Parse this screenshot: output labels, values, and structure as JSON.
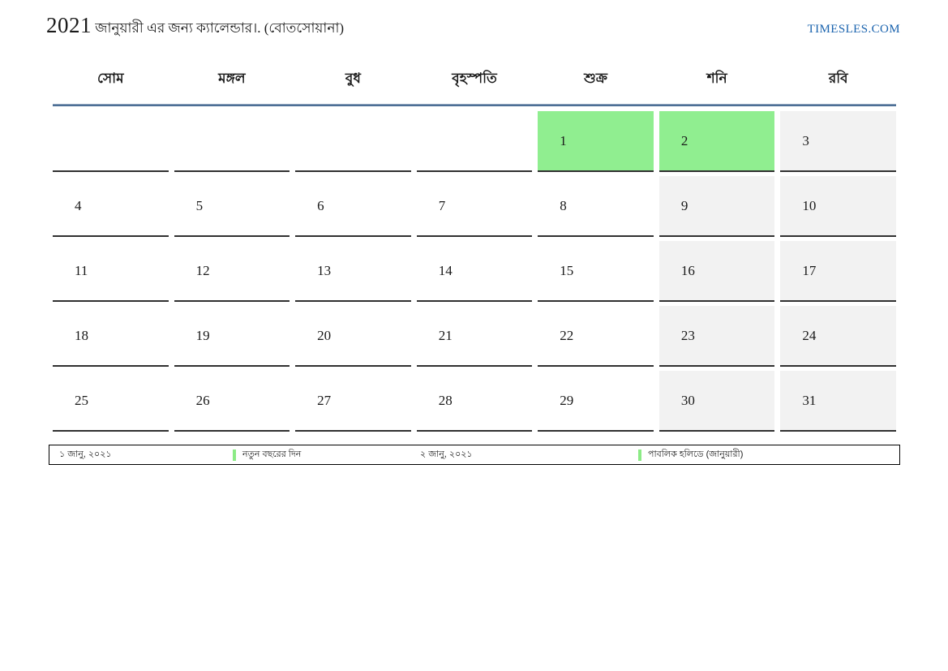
{
  "header": {
    "title_year": "2021",
    "title_text": "জানুয়ারী এর জন্য ক্যালেন্ডার।. (বোতসোয়ানা)",
    "site_link": "TIMESLES.COM"
  },
  "calendar": {
    "day_headers": [
      "সোম",
      "মঙ্গল",
      "বুধ",
      "বৃহস্পতি",
      "শুক্র",
      "শনি",
      "রবি"
    ],
    "weeks": [
      {
        "cells": [
          {
            "day": "",
            "type": "empty"
          },
          {
            "day": "",
            "type": "empty"
          },
          {
            "day": "",
            "type": "empty"
          },
          {
            "day": "",
            "type": "empty"
          },
          {
            "day": "1",
            "type": "holiday"
          },
          {
            "day": "2",
            "type": "holiday"
          },
          {
            "day": "3",
            "type": "weekend"
          }
        ]
      },
      {
        "cells": [
          {
            "day": "4",
            "type": "weekday"
          },
          {
            "day": "5",
            "type": "weekday"
          },
          {
            "day": "6",
            "type": "weekday"
          },
          {
            "day": "7",
            "type": "weekday"
          },
          {
            "day": "8",
            "type": "weekday"
          },
          {
            "day": "9",
            "type": "weekend"
          },
          {
            "day": "10",
            "type": "weekend"
          }
        ]
      },
      {
        "cells": [
          {
            "day": "11",
            "type": "weekday"
          },
          {
            "day": "12",
            "type": "weekday"
          },
          {
            "day": "13",
            "type": "weekday"
          },
          {
            "day": "14",
            "type": "weekday"
          },
          {
            "day": "15",
            "type": "weekday"
          },
          {
            "day": "16",
            "type": "weekend"
          },
          {
            "day": "17",
            "type": "weekend"
          }
        ]
      },
      {
        "cells": [
          {
            "day": "18",
            "type": "weekday"
          },
          {
            "day": "19",
            "type": "weekday"
          },
          {
            "day": "20",
            "type": "weekday"
          },
          {
            "day": "21",
            "type": "weekday"
          },
          {
            "day": "22",
            "type": "weekday"
          },
          {
            "day": "23",
            "type": "weekend"
          },
          {
            "day": "24",
            "type": "weekend"
          }
        ]
      },
      {
        "cells": [
          {
            "day": "25",
            "type": "weekday"
          },
          {
            "day": "26",
            "type": "weekday"
          },
          {
            "day": "27",
            "type": "weekday"
          },
          {
            "day": "28",
            "type": "weekday"
          },
          {
            "day": "29",
            "type": "weekday"
          },
          {
            "day": "30",
            "type": "weekend"
          },
          {
            "day": "31",
            "type": "weekend"
          }
        ]
      }
    ]
  },
  "legend": {
    "items": [
      {
        "date": "১ জানু, ২০২১",
        "label": "নতুন বছরের দিন"
      },
      {
        "date": "২ জানু, ২০২১",
        "label": "পাবলিক হলিডে (জানুয়ারী)"
      }
    ]
  },
  "colors": {
    "holiday_green": "#90ee90",
    "weekend_gray": "#f2f2f2",
    "rule_blue": "#4d6f96",
    "link_blue": "#1a63ae",
    "marker_green": "#8ceb86",
    "cell_border": "#303030"
  }
}
